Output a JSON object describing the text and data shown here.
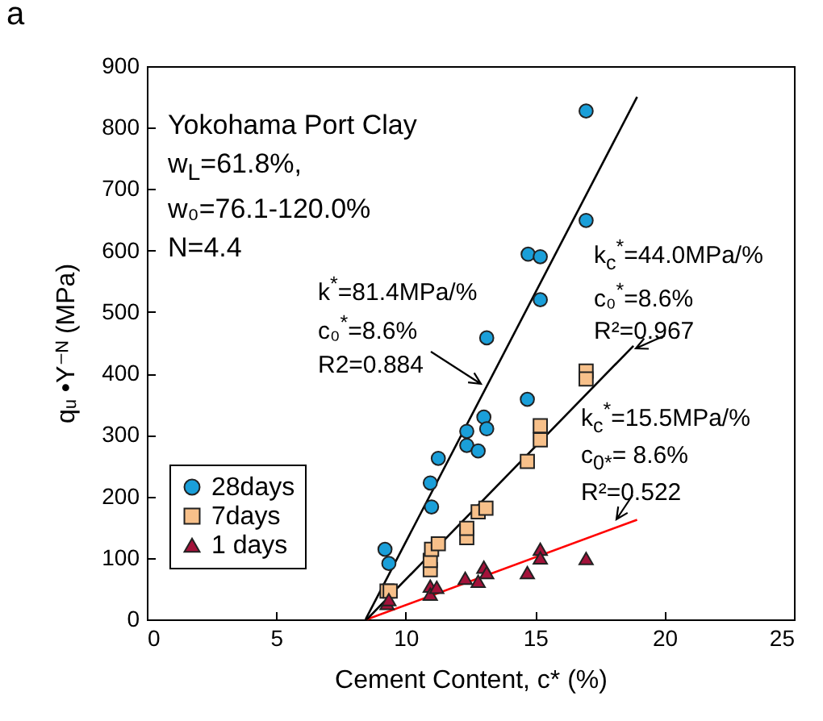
{
  "chart_data": {
    "type": "scatter",
    "title": "a",
    "xlabel": "Cement Content, c* (%)",
    "ylabel": "qᵤ •Y⁻ᴺ  (MPa)",
    "xlim": [
      0,
      25
    ],
    "xticks": [
      0,
      5,
      10,
      15,
      20,
      25
    ],
    "ylim": [
      0,
      900
    ],
    "yticks": [
      0,
      100,
      200,
      300,
      400,
      500,
      600,
      700,
      800,
      900
    ],
    "grid": false,
    "legend": "left",
    "series": [
      {
        "name": "28days",
        "color": "#1a9fd9",
        "marker": "circle",
        "x": [
          9.2,
          9.35,
          10.95,
          11.0,
          11.26,
          12.36,
          12.36,
          12.8,
          13.02,
          13.13,
          14.7,
          13.13,
          14.73,
          15.2,
          15.2,
          16.97,
          16.97
        ],
        "values": [
          114,
          91,
          222,
          183,
          262,
          306,
          283,
          274,
          329,
          310,
          358,
          458,
          594,
          590,
          520,
          649,
          827
        ]
      },
      {
        "name": "7days",
        "color": "#f7c08a",
        "marker": "square",
        "x": [
          9.28,
          9.4,
          10.95,
          10.95,
          11.0,
          11.26,
          12.36,
          12.36,
          12.8,
          13.1,
          14.7,
          15.2,
          15.2,
          16.97,
          16.97
        ],
        "values": [
          46,
          46,
          81,
          96,
          114,
          123,
          133,
          148,
          175,
          181,
          257,
          292,
          315,
          404,
          391
        ]
      },
      {
        "name": "1 days",
        "color": "#a3123a",
        "marker": "triangle",
        "x": [
          9.28,
          9.35,
          10.95,
          10.95,
          11.2,
          12.3,
          12.8,
          13.02,
          13.13,
          14.7,
          15.2,
          15.2,
          16.97
        ],
        "values": [
          26,
          32,
          54,
          41,
          52,
          67,
          62,
          85,
          76,
          76,
          114,
          100,
          99
        ]
      },
      {
        "type": "line",
        "color": "#000000",
        "x": [
          8.45,
          18.94
        ],
        "values": [
          0,
          850
        ]
      },
      {
        "type": "line",
        "color": "#000000",
        "x": [
          8.5,
          18.8
        ],
        "values": [
          0,
          445
        ]
      },
      {
        "type": "line",
        "color": "#ff0000",
        "x": [
          8.5,
          18.94
        ],
        "values": [
          0,
          162
        ]
      }
    ],
    "annotations": [
      "Yokohama Port Clay\nw$_{L}$=61.8%,\nw₀=76.1-120.0%\nN=4.4",
      "k$^{*}$=81.4MPa/%\nc₀$^{*}$=8.6%\nR2=0.884",
      "k$_{c}$$^{*}$=44.0MPa/%\nc₀$^{*}$=8.6%\nR²=0.967",
      "k$_{c}$$^{*}$=15.5MPa/%\nc$_{0*}$= 8.6%\nR²=0.522"
    ]
  }
}
